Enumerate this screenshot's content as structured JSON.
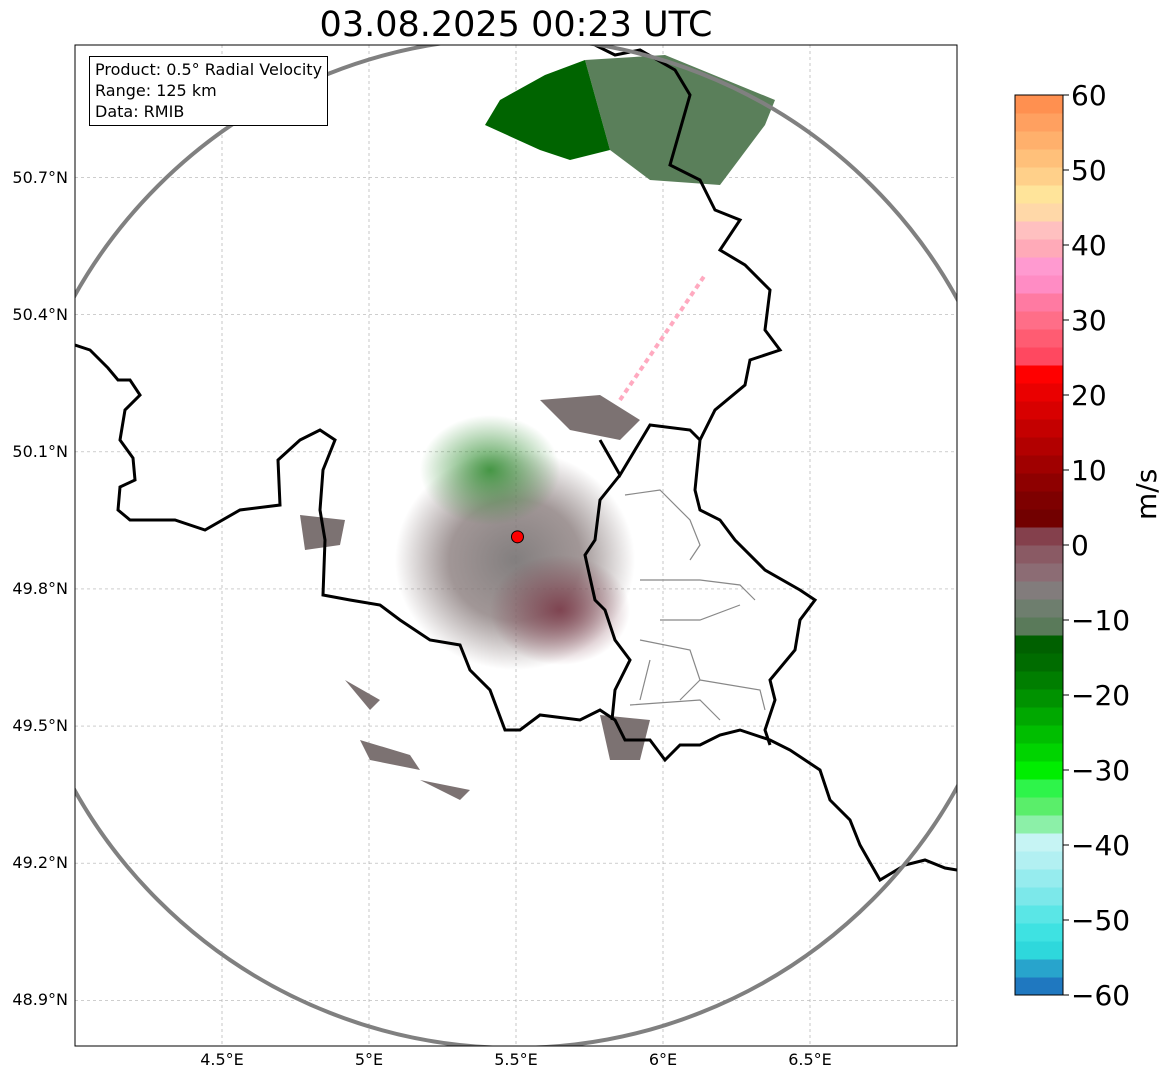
{
  "title": "03.08.2025 00:23 UTC",
  "info": {
    "product": "Product: 0.5° Radial Velocity",
    "range": "Range: 125 km",
    "source": "Data: RMIB"
  },
  "map": {
    "lon_range": [
      4.0,
      7.0
    ],
    "lat_range": [
      48.8,
      50.99
    ],
    "lat_ticks": [
      {
        "value": 50.7,
        "label": "50.7°N"
      },
      {
        "value": 50.4,
        "label": "50.4°N"
      },
      {
        "value": 50.1,
        "label": "50.1°N"
      },
      {
        "value": 49.8,
        "label": "49.8°N"
      },
      {
        "value": 49.5,
        "label": "49.5°N"
      },
      {
        "value": 49.2,
        "label": "49.2°N"
      },
      {
        "value": 48.9,
        "label": "48.9°N"
      }
    ],
    "lon_ticks": [
      {
        "value": 4.5,
        "label": "4.5°E"
      },
      {
        "value": 5.0,
        "label": "5°E"
      },
      {
        "value": 5.5,
        "label": "5.5°E"
      },
      {
        "value": 6.0,
        "label": "6°E"
      },
      {
        "value": 6.5,
        "label": "6.5°E"
      }
    ],
    "radar_site": {
      "lon": 5.505,
      "lat": 49.914
    },
    "range_km": 125,
    "colors": {
      "radar_site": "#ff0000",
      "range_ring": "#808080",
      "border": "#000000",
      "admin_border": "#888888",
      "grid": "#b0b0b0"
    }
  },
  "colorbar": {
    "min": -60,
    "max": 60,
    "unit": "m/s",
    "tick_values": [
      60,
      50,
      40,
      30,
      20,
      10,
      0,
      -10,
      -20,
      -30,
      -40,
      -50,
      -60
    ],
    "tick_labels": [
      "60",
      "50",
      "40",
      "30",
      "20",
      "10",
      "0",
      "−10",
      "−20",
      "−30",
      "−40",
      "−50",
      "−60"
    ],
    "colors": [
      "#1f78c0",
      "#28a4cc",
      "#2ed8dc",
      "#3ee2e2",
      "#5ae6e6",
      "#7ce8ea",
      "#96ecee",
      "#b2f0f2",
      "#c6f4f4",
      "#8cf0a8",
      "#5aee6a",
      "#2ef44a",
      "#00ee00",
      "#00d400",
      "#00be00",
      "#00a800",
      "#009200",
      "#007e00",
      "#006c00",
      "#006000",
      "#5a7a5a",
      "#6e7e6e",
      "#827c7c",
      "#8c6c74",
      "#8a5a64",
      "#84404c",
      "#720000",
      "#7e0000",
      "#8e0000",
      "#a00000",
      "#b20000",
      "#c40000",
      "#d80000",
      "#ea0000",
      "#ff0000",
      "#ff4860",
      "#ff5c72",
      "#ff6e88",
      "#ff7aa2",
      "#ff8cc4",
      "#ff9ad0",
      "#ffaab8",
      "#ffc0c0",
      "#ffd8a8",
      "#ffe49a",
      "#ffd08a",
      "#ffc07a",
      "#ffb06c",
      "#ffa060",
      "#ff9050"
    ]
  }
}
